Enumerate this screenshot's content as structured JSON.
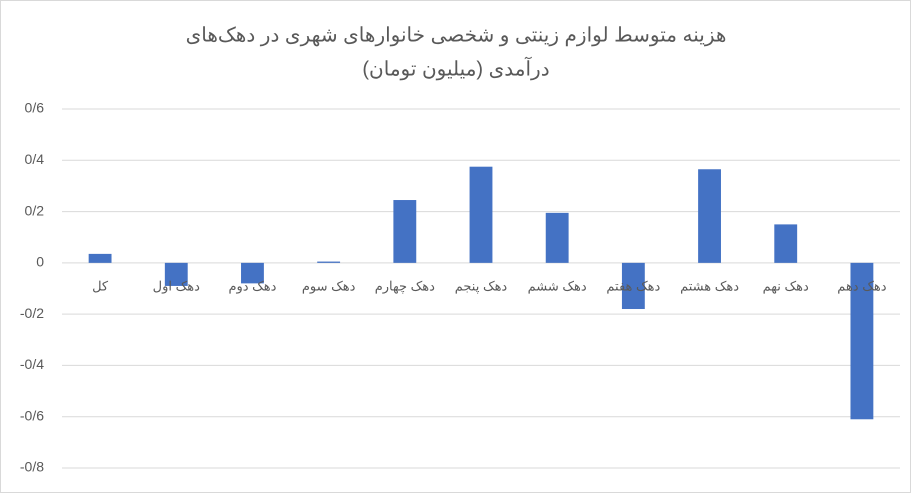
{
  "chart_data": {
    "type": "bar",
    "title": [
      "هزینه متوسط لوازم زینتی و شخصی خانوارهای شهری در دهک‌های",
      "درآمدی (میلیون تومان)"
    ],
    "categories": [
      "کل",
      "دهک اول",
      "دهک دوم",
      "دهک سوم",
      "دهک چهارم",
      "دهک پنجم",
      "دهک ششم",
      "دهک هفتم",
      "دهک هشتم",
      "دهک نهم",
      "دهک دهم"
    ],
    "values": [
      0.035,
      -0.09,
      -0.08,
      0.005,
      0.245,
      0.375,
      0.195,
      -0.18,
      0.365,
      0.15,
      -0.61
    ],
    "color": "#4472c4",
    "ylim": [
      -0.8,
      0.6
    ],
    "yticks": [
      {
        "value": -0.8,
        "label": "-0/8"
      },
      {
        "value": -0.6,
        "label": "-0/6"
      },
      {
        "value": -0.4,
        "label": "-0/4"
      },
      {
        "value": -0.2,
        "label": "-0/2"
      },
      0,
      {
        "value": 0.2,
        "label": "0/2"
      },
      {
        "value": 0.4,
        "label": "0/4"
      },
      {
        "value": 0.6,
        "label": "0/6"
      }
    ],
    "grid": true
  }
}
